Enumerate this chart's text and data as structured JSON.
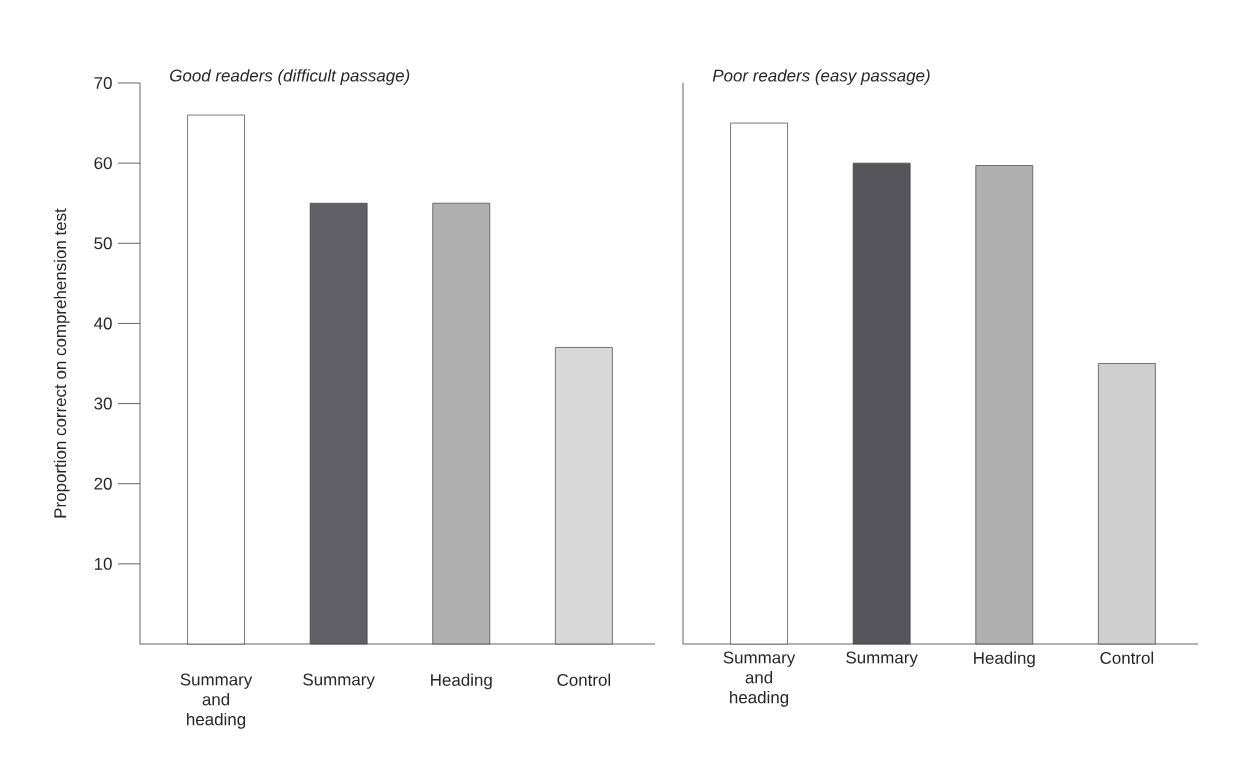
{
  "chart_data": [
    {
      "type": "bar",
      "title": "Good readers (difficult passage)",
      "ylabel": "Proportion correct on comprehension test",
      "categories": [
        "Summary and heading",
        "Summary",
        "Heading",
        "Control"
      ],
      "values": [
        66,
        55,
        55,
        37
      ],
      "colors": [
        "#ffffff",
        "#606066",
        "#b0b0b0",
        "#d8d8d8"
      ],
      "ylim": [
        0,
        70
      ],
      "yticks": [
        10,
        20,
        30,
        40,
        50,
        60,
        70
      ]
    },
    {
      "type": "bar",
      "title": "Poor readers (easy passage)",
      "categories": [
        "Summary and heading",
        "Summary",
        "Heading",
        "Control"
      ],
      "values": [
        65,
        60,
        59.7,
        35
      ],
      "colors": [
        "#ffffff",
        "#55555b",
        "#b0b0b0",
        "#cfcfcf"
      ],
      "ylim": [
        0,
        70
      ],
      "yticks": [
        10,
        20,
        30,
        40,
        50,
        60,
        70
      ],
      "tick_labels": "x"
    }
  ]
}
